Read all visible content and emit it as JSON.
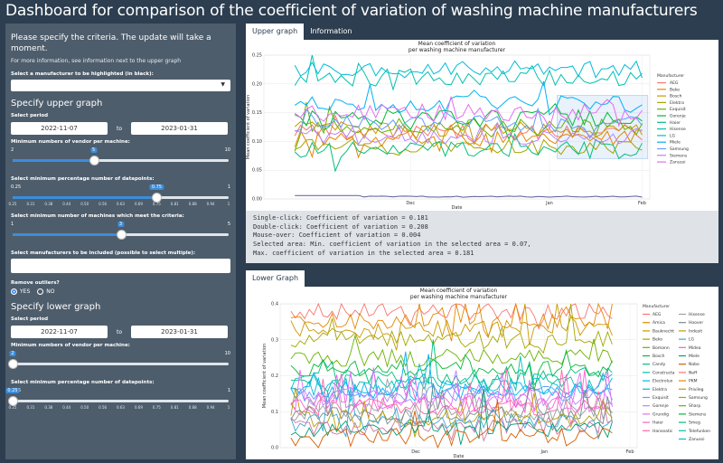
{
  "app_title": "Dashboard for comparison of the coefficient of variation of washing machine manufacturers",
  "sidebar": {
    "intro": "Please specify the criteria. The update will take a moment.",
    "more_info": "For more information, see information next to the upper graph",
    "highlight_label": "Select a manufacturer to be highlighted (in black):",
    "upper_heading": "Specify upper graph",
    "period_label": "Select period",
    "upper_start": "2022-11-07",
    "to": "to",
    "upper_end": "2023-01-31",
    "vendor_label": "Minimum numbers of vendor per machine:",
    "upper_vendor": {
      "min": "2",
      "max": "10",
      "value": "5",
      "fraction": 0.375
    },
    "pct_label": "Select minimum percentage number of datapoints:",
    "upper_pct": {
      "min": "0.25",
      "max": "1",
      "value": "0.75",
      "fraction": 0.667
    },
    "pct_ticks": [
      "0.25",
      "0.31",
      "0.38",
      "0.44",
      "0.50",
      "0.56",
      "0.63",
      "0.69",
      "0.75",
      "0.81",
      "0.88",
      "0.94",
      "1"
    ],
    "machines_label": "Select minimum number of machines which meet the criteria:",
    "upper_machines": {
      "min": "1",
      "max": "5",
      "value": "3",
      "fraction": 0.5
    },
    "manuf_label": "Select manufacturers to be included (possible to select multiple):",
    "outliers_label": "Remove outliers?",
    "yes": "YES",
    "no": "NO",
    "lower_heading": "Specify lower graph",
    "lower_start": "2022-11-07",
    "lower_end": "2023-01-31",
    "lower_vendor": {
      "min": "2",
      "max": "10",
      "value": "2",
      "fraction": 0.0
    },
    "lower_pct": {
      "min": "0.25",
      "max": "1",
      "value": "0.25",
      "fraction": 0.0
    }
  },
  "tabs_upper": [
    "Upper graph",
    "Information"
  ],
  "tabs_lower": [
    "Lower Graph"
  ],
  "upper_msgs": [
    "Single-click: Coefficient of variation = 0.181",
    "Double-click: Coefficient of variation = 0.208",
    "Mouse-over: Coefficient of variation = 0.004",
    "Selected area: Min. coefficient of variation in the selected area = 0.07,",
    " Max. coefficient of variation in the selected area = 0.181"
  ],
  "chart_data": [
    {
      "type": "line",
      "title": "Mean coefficient of variation\nper washing machine manufacturer",
      "xlabel": "Date",
      "ylabel": "Mean coefficient of variation",
      "xlim": [
        "2022-11-07",
        "2023-01-31"
      ],
      "x_ticks": [
        "Dec",
        "Jan",
        "Feb"
      ],
      "ylim": [
        0,
        0.25
      ],
      "y_ticks": [
        "0.00",
        "0.05",
        "0.10",
        "0.15",
        "0.20",
        "0.25"
      ],
      "legend_title": "Manufacturer",
      "legend_position": "right",
      "series": [
        {
          "name": "AEG",
          "color": "#f8766d",
          "level": 0.115
        },
        {
          "name": "Beko",
          "color": "#e58700",
          "level": 0.105
        },
        {
          "name": "Bosch",
          "color": "#c99800",
          "level": 0.12
        },
        {
          "name": "Elektra",
          "color": "#a3a500",
          "level": 0.09
        },
        {
          "name": "Exquisit",
          "color": "#6bb100",
          "level": 0.125
        },
        {
          "name": "Gorenje",
          "color": "#00ba38",
          "level": 0.14
        },
        {
          "name": "Haier",
          "color": "#00bf7d",
          "level": 0.085
        },
        {
          "name": "Hisense",
          "color": "#00c0af",
          "level": 0.21
        },
        {
          "name": "LG",
          "color": "#00bcd8",
          "level": 0.225
        },
        {
          "name": "Miele",
          "color": "#00b0f6",
          "level": 0.165
        },
        {
          "name": "Samsung",
          "color": "#619cff",
          "level": 0.13
        },
        {
          "name": "Siemens",
          "color": "#b983ff",
          "level": 0.11
        },
        {
          "name": "Zanussi",
          "color": "#e76bf3",
          "level": 0.15
        },
        {
          "name": "",
          "color": "#5a5a9a",
          "level": 0.004
        }
      ]
    },
    {
      "type": "line",
      "title": "Mean coefficient of variation\nper washing machine manufacturer",
      "xlabel": "Date",
      "ylabel": "Mean coefficient of variation",
      "xlim": [
        "2022-11-07",
        "2023-01-31"
      ],
      "x_ticks": [
        "Dec",
        "Jan",
        "Feb"
      ],
      "ylim": [
        0,
        0.4
      ],
      "y_ticks": [
        "0.0",
        "0.1",
        "0.2",
        "0.3",
        "0.4"
      ],
      "legend_title": "Manufacturer",
      "legend_position": "right",
      "legend_col1": [
        "AEG",
        "Amica",
        "Bauknecht",
        "Beko",
        "Bomann",
        "Bosch",
        "Candy",
        "Constructa",
        "Electrolux",
        "Elektra",
        "Exquisit",
        "Gorenje",
        "Grundig",
        "Haier",
        "Hanseatic"
      ],
      "legend_col2": [
        "Hisense",
        "Hoover",
        "Indesit",
        "LG",
        "Midea",
        "Miele",
        "Nabo",
        "Neff",
        "PKM",
        "Privileg",
        "Samsung",
        "Sharp",
        "Siemens",
        "Smeg",
        "Telefunken",
        "Zanussi"
      ],
      "series_levels": [
        0.38,
        0.35,
        0.33,
        0.3,
        0.25,
        0.22,
        0.2,
        0.18,
        0.17,
        0.16,
        0.15,
        0.14,
        0.13,
        0.12,
        0.11,
        0.1,
        0.09,
        0.08,
        0.07,
        0.06,
        0.05,
        0.03
      ]
    }
  ]
}
